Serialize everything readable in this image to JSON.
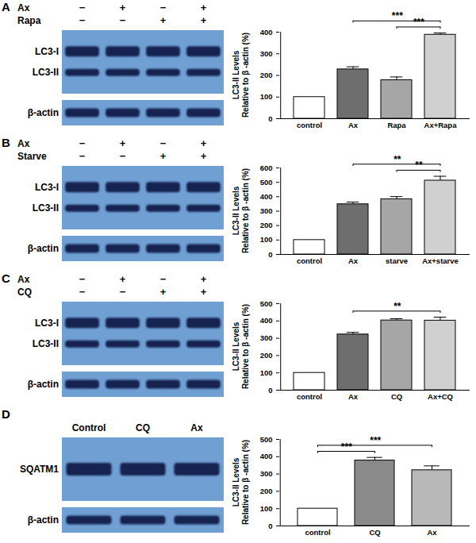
{
  "chart_data": [
    {
      "type": "bar",
      "categories": [
        "control",
        "Ax",
        "Rapa",
        "Ax+Rapa"
      ],
      "values": [
        100,
        228,
        178,
        388
      ],
      "errors": [
        0,
        12,
        15,
        8
      ],
      "colors": [
        "#ffffff",
        "#6e6e6e",
        "#a6a6a6",
        "#d0d0d0"
      ],
      "ylabel": "LC3-II Levels\nRelative to β -actin (%)",
      "ylim": [
        0,
        400
      ],
      "yticks": [
        0,
        100,
        200,
        300,
        400
      ],
      "annotations": [
        {
          "from": "Ax",
          "to": "Ax+Rapa",
          "label": "***"
        },
        {
          "from": "Rapa",
          "to": "Ax+Rapa",
          "label": "***"
        }
      ]
    },
    {
      "type": "bar",
      "categories": [
        "control",
        "Ax",
        "starve",
        "Ax+starve"
      ],
      "values": [
        100,
        348,
        383,
        512
      ],
      "errors": [
        0,
        15,
        18,
        30
      ],
      "colors": [
        "#ffffff",
        "#6e6e6e",
        "#a6a6a6",
        "#d0d0d0"
      ],
      "ylabel": "LC3-II Levels\nRelative to β -actin (%)",
      "ylim": [
        0,
        600
      ],
      "yticks": [
        0,
        100,
        200,
        300,
        400,
        500,
        600
      ],
      "annotations": [
        {
          "from": "Ax",
          "to": "Ax+starve",
          "label": "**"
        },
        {
          "from": "starve",
          "to": "Ax+starve",
          "label": "**"
        }
      ]
    },
    {
      "type": "bar",
      "categories": [
        "control",
        "Ax",
        "CQ",
        "Ax+CQ"
      ],
      "values": [
        100,
        322,
        403,
        402
      ],
      "errors": [
        0,
        12,
        10,
        20
      ],
      "colors": [
        "#ffffff",
        "#6e6e6e",
        "#a6a6a6",
        "#d0d0d0"
      ],
      "ylabel": "LC3-II Levels\nRelative to β -actin (%)",
      "ylim": [
        0,
        500
      ],
      "yticks": [
        0,
        100,
        200,
        300,
        400,
        500
      ],
      "annotations": [
        {
          "from": "Ax",
          "to": "Ax+CQ",
          "label": "**"
        }
      ]
    },
    {
      "type": "bar",
      "categories": [
        "control",
        "CQ",
        "Ax"
      ],
      "values": [
        100,
        378,
        322
      ],
      "errors": [
        0,
        18,
        25
      ],
      "colors": [
        "#ffffff",
        "#8a8a8a",
        "#b8b8b8"
      ],
      "ylabel": "LC3-II Levels\nRelative to β -actin (%)",
      "ylim": [
        0,
        500
      ],
      "yticks": [
        0,
        100,
        200,
        300,
        400,
        500
      ],
      "annotations": [
        {
          "from": "control",
          "to": "Ax",
          "label": "***"
        },
        {
          "from": "control",
          "to": "CQ",
          "label": "***"
        }
      ]
    }
  ],
  "blots": [
    {
      "panel": "A",
      "treatments": [
        {
          "name": "Ax",
          "signs": [
            "−",
            "+",
            "−",
            "+"
          ]
        },
        {
          "name": "Rapa",
          "signs": [
            "−",
            "−",
            "+",
            "+"
          ]
        }
      ],
      "bands": [
        "LC3-I",
        "LC3-II"
      ],
      "control_band": "β-actin"
    },
    {
      "panel": "B",
      "treatments": [
        {
          "name": "Ax",
          "signs": [
            "−",
            "+",
            "−",
            "+"
          ]
        },
        {
          "name": "Starve",
          "signs": [
            "−",
            "−",
            "+",
            "+"
          ]
        }
      ],
      "bands": [
        "LC3-I",
        "LC3-II"
      ],
      "control_band": "β-actin"
    },
    {
      "panel": "C",
      "treatments": [
        {
          "name": "Ax",
          "signs": [
            "−",
            "+",
            "−",
            "+"
          ]
        },
        {
          "name": "CQ",
          "signs": [
            "−",
            "−",
            "+",
            "+"
          ]
        }
      ],
      "bands": [
        "LC3-I",
        "LC3-II"
      ],
      "control_band": "β-actin"
    },
    {
      "panel": "D",
      "lanes": [
        "Control",
        "CQ",
        "Ax"
      ],
      "bands": [
        "SQATM1"
      ],
      "control_band": "β-actin"
    }
  ]
}
